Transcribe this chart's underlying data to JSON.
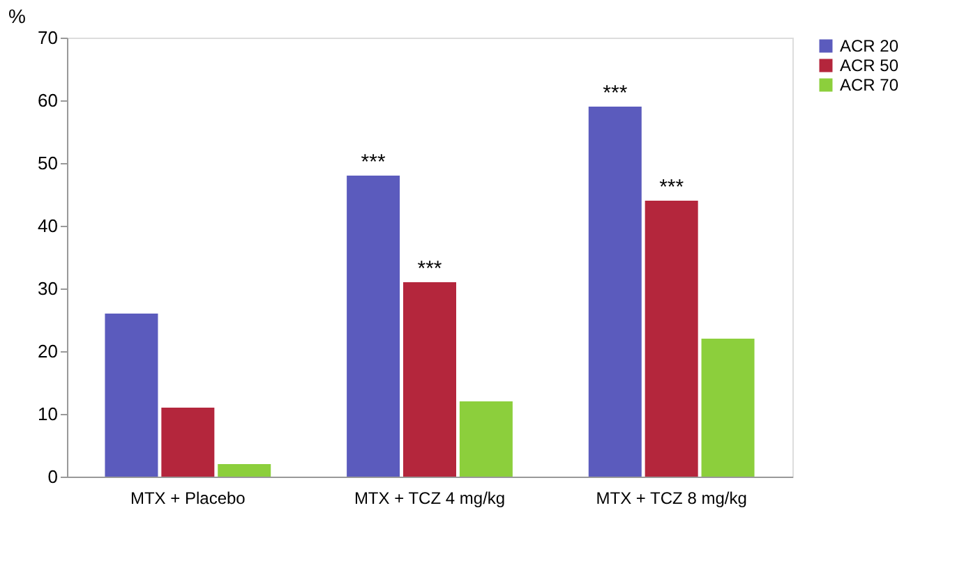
{
  "chart_data": {
    "type": "bar",
    "ylabel": "%",
    "categories": [
      "MTX + Placebo",
      "MTX + TCZ 4 mg/kg",
      "MTX + TCZ 8 mg/kg"
    ],
    "series": [
      {
        "name": "ACR 20",
        "color": "#5b5bbd",
        "values": [
          26,
          48,
          59
        ],
        "value_labels": [
          null,
          "***",
          "***"
        ]
      },
      {
        "name": "ACR 50",
        "color": "#b4263c",
        "values": [
          11,
          31,
          44
        ],
        "value_labels": [
          null,
          "***",
          "***"
        ]
      },
      {
        "name": "ACR 70",
        "color": "#8ccf3c",
        "values": [
          2,
          12,
          22
        ]
      }
    ],
    "ylim": [
      0,
      70
    ],
    "yticks": [
      0,
      10,
      20,
      30,
      40,
      50,
      60,
      70
    ],
    "grid": false,
    "legend": "top right"
  }
}
